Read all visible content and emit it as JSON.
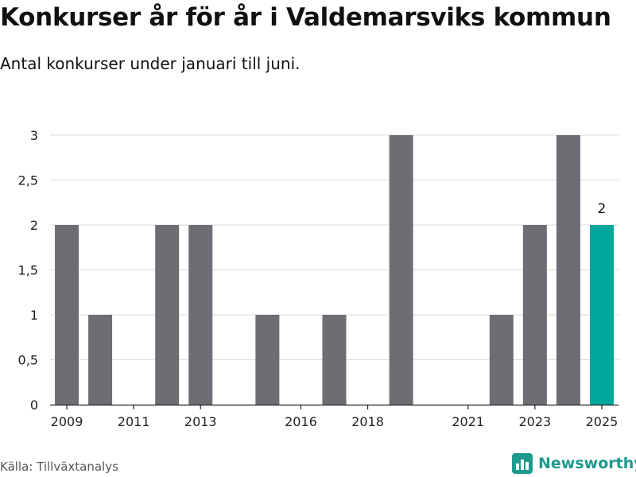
{
  "header": {
    "title": "Konkurser år för år i Valdemarsviks kommun",
    "subtitle": "Antal konkurser under januari till juni."
  },
  "footer": {
    "source": "Källa: Tillväxtanalys",
    "brand": "Newsworthy"
  },
  "colors": {
    "bar": "#6e6d74",
    "highlight": "#00a79a",
    "grid": "#dddddd",
    "brand": "#1d9a8d"
  },
  "chart_data": {
    "type": "bar",
    "categories": [
      "2009",
      "2010",
      "2011",
      "2012",
      "2013",
      "2014",
      "2015",
      "2016",
      "2017",
      "2018",
      "2019",
      "2020",
      "2021",
      "2022",
      "2023",
      "2024",
      "2025"
    ],
    "values": [
      2,
      1,
      0,
      2,
      2,
      0,
      1,
      0,
      1,
      0,
      3,
      0,
      0,
      1,
      2,
      3,
      2
    ],
    "highlight_category": "2025",
    "highlight_label": "2",
    "x_tick_labels": [
      "2009",
      "2011",
      "2013",
      "2016",
      "2018",
      "2021",
      "2023",
      "2025"
    ],
    "y_ticks": [
      0,
      0.5,
      1,
      1.5,
      2,
      2.5,
      3
    ],
    "y_tick_labels": [
      "0",
      "0,5",
      "1",
      "1,5",
      "2",
      "2,5",
      "3"
    ],
    "ylim": [
      0,
      3
    ],
    "grid": true,
    "legend": "none"
  }
}
